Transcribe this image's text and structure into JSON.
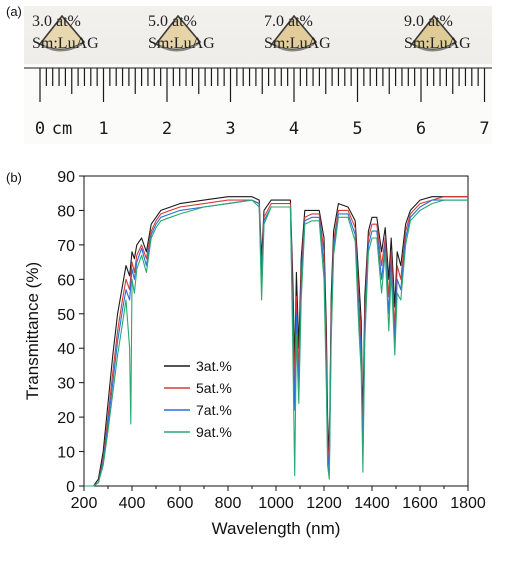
{
  "panel_a": {
    "label": "(a)",
    "samples": [
      {
        "line1": "3.0 at%",
        "line2": "Sm:LuAG",
        "color": "#e8d8b0"
      },
      {
        "line1": "5.0 at%",
        "line2": "Sm:LuAG",
        "color": "#e6d4a8"
      },
      {
        "line1": "7.0 at%",
        "line2": "Sm:LuAG",
        "color": "#e2cd9a"
      },
      {
        "line1": "9.0 at%",
        "line2": "Sm:LuAG",
        "color": "#decb95"
      }
    ],
    "ruler": {
      "unit": "cm",
      "numbers": [
        "0",
        "1",
        "2",
        "3",
        "4",
        "5",
        "6",
        "7"
      ]
    }
  },
  "panel_b": {
    "label": "(b)"
  },
  "chart_data": {
    "type": "line",
    "xlabel": "Wavelength (nm)",
    "ylabel": "Transmittance (%)",
    "xlim": [
      200,
      1800
    ],
    "ylim": [
      0,
      90
    ],
    "xticks": [
      200,
      400,
      600,
      800,
      1000,
      1200,
      1400,
      1600,
      1800
    ],
    "yticks": [
      0,
      10,
      20,
      30,
      40,
      50,
      60,
      70,
      80,
      90
    ],
    "legend_position": "center-left",
    "series": [
      {
        "name": "3at.%",
        "color": "#1a1a1a",
        "points": [
          [
            200,
            0
          ],
          [
            240,
            0
          ],
          [
            260,
            2
          ],
          [
            280,
            10
          ],
          [
            300,
            24
          ],
          [
            320,
            38
          ],
          [
            340,
            50
          ],
          [
            360,
            58
          ],
          [
            375,
            64
          ],
          [
            390,
            61
          ],
          [
            400,
            68
          ],
          [
            410,
            66
          ],
          [
            420,
            70
          ],
          [
            440,
            72
          ],
          [
            460,
            68
          ],
          [
            480,
            76
          ],
          [
            500,
            78
          ],
          [
            520,
            80
          ],
          [
            560,
            81
          ],
          [
            600,
            82
          ],
          [
            700,
            83
          ],
          [
            800,
            84
          ],
          [
            900,
            84
          ],
          [
            930,
            83
          ],
          [
            940,
            66
          ],
          [
            950,
            80
          ],
          [
            980,
            83
          ],
          [
            1060,
            83
          ],
          [
            1070,
            60
          ],
          [
            1078,
            35
          ],
          [
            1085,
            62
          ],
          [
            1095,
            40
          ],
          [
            1105,
            66
          ],
          [
            1120,
            80
          ],
          [
            1150,
            80
          ],
          [
            1180,
            80
          ],
          [
            1200,
            72
          ],
          [
            1210,
            45
          ],
          [
            1215,
            20
          ],
          [
            1222,
            8
          ],
          [
            1230,
            55
          ],
          [
            1240,
            74
          ],
          [
            1260,
            82
          ],
          [
            1300,
            81
          ],
          [
            1330,
            77
          ],
          [
            1345,
            60
          ],
          [
            1355,
            48
          ],
          [
            1362,
            18
          ],
          [
            1370,
            55
          ],
          [
            1385,
            74
          ],
          [
            1400,
            78
          ],
          [
            1420,
            78
          ],
          [
            1440,
            68
          ],
          [
            1455,
            75
          ],
          [
            1470,
            60
          ],
          [
            1480,
            72
          ],
          [
            1495,
            52
          ],
          [
            1505,
            68
          ],
          [
            1520,
            64
          ],
          [
            1540,
            76
          ],
          [
            1560,
            80
          ],
          [
            1600,
            83
          ],
          [
            1650,
            84
          ],
          [
            1700,
            84
          ],
          [
            1800,
            84
          ]
        ]
      },
      {
        "name": "5at.%",
        "color": "#d83a3a",
        "points": [
          [
            200,
            0
          ],
          [
            240,
            0
          ],
          [
            260,
            1
          ],
          [
            280,
            8
          ],
          [
            300,
            20
          ],
          [
            320,
            33
          ],
          [
            340,
            45
          ],
          [
            360,
            54
          ],
          [
            375,
            60
          ],
          [
            390,
            57
          ],
          [
            400,
            65
          ],
          [
            410,
            62
          ],
          [
            420,
            67
          ],
          [
            440,
            70
          ],
          [
            460,
            66
          ],
          [
            480,
            74
          ],
          [
            500,
            77
          ],
          [
            520,
            79
          ],
          [
            560,
            80
          ],
          [
            600,
            81
          ],
          [
            700,
            82
          ],
          [
            800,
            83
          ],
          [
            900,
            83
          ],
          [
            930,
            82
          ],
          [
            940,
            62
          ],
          [
            950,
            78
          ],
          [
            980,
            82
          ],
          [
            1060,
            82
          ],
          [
            1070,
            52
          ],
          [
            1078,
            28
          ],
          [
            1085,
            55
          ],
          [
            1095,
            33
          ],
          [
            1105,
            62
          ],
          [
            1120,
            78
          ],
          [
            1150,
            79
          ],
          [
            1180,
            79
          ],
          [
            1200,
            68
          ],
          [
            1210,
            38
          ],
          [
            1215,
            14
          ],
          [
            1222,
            5
          ],
          [
            1230,
            50
          ],
          [
            1240,
            71
          ],
          [
            1260,
            80
          ],
          [
            1300,
            80
          ],
          [
            1330,
            75
          ],
          [
            1345,
            55
          ],
          [
            1355,
            42
          ],
          [
            1362,
            12
          ],
          [
            1370,
            50
          ],
          [
            1385,
            72
          ],
          [
            1400,
            76
          ],
          [
            1420,
            76
          ],
          [
            1440,
            64
          ],
          [
            1455,
            72
          ],
          [
            1470,
            55
          ],
          [
            1480,
            68
          ],
          [
            1495,
            46
          ],
          [
            1505,
            64
          ],
          [
            1520,
            60
          ],
          [
            1540,
            74
          ],
          [
            1560,
            79
          ],
          [
            1600,
            82
          ],
          [
            1650,
            83
          ],
          [
            1700,
            84
          ],
          [
            1800,
            84
          ]
        ]
      },
      {
        "name": "7at.%",
        "color": "#2a6fd6",
        "points": [
          [
            200,
            0
          ],
          [
            240,
            0
          ],
          [
            260,
            1
          ],
          [
            280,
            7
          ],
          [
            300,
            18
          ],
          [
            320,
            30
          ],
          [
            340,
            42
          ],
          [
            360,
            51
          ],
          [
            375,
            57
          ],
          [
            390,
            54
          ],
          [
            400,
            63
          ],
          [
            410,
            60
          ],
          [
            420,
            65
          ],
          [
            440,
            69
          ],
          [
            460,
            64
          ],
          [
            480,
            73
          ],
          [
            500,
            76
          ],
          [
            520,
            78
          ],
          [
            560,
            79
          ],
          [
            600,
            80
          ],
          [
            700,
            81
          ],
          [
            800,
            82
          ],
          [
            900,
            83
          ],
          [
            930,
            82
          ],
          [
            940,
            58
          ],
          [
            950,
            77
          ],
          [
            980,
            81
          ],
          [
            1060,
            81
          ],
          [
            1070,
            46
          ],
          [
            1078,
            22
          ],
          [
            1085,
            50
          ],
          [
            1095,
            28
          ],
          [
            1105,
            58
          ],
          [
            1120,
            77
          ],
          [
            1150,
            78
          ],
          [
            1180,
            78
          ],
          [
            1200,
            64
          ],
          [
            1210,
            32
          ],
          [
            1215,
            10
          ],
          [
            1222,
            4
          ],
          [
            1230,
            46
          ],
          [
            1240,
            69
          ],
          [
            1260,
            79
          ],
          [
            1300,
            79
          ],
          [
            1330,
            73
          ],
          [
            1345,
            50
          ],
          [
            1355,
            38
          ],
          [
            1362,
            9
          ],
          [
            1370,
            46
          ],
          [
            1385,
            70
          ],
          [
            1400,
            74
          ],
          [
            1420,
            74
          ],
          [
            1440,
            60
          ],
          [
            1455,
            70
          ],
          [
            1470,
            50
          ],
          [
            1480,
            65
          ],
          [
            1495,
            42
          ],
          [
            1505,
            60
          ],
          [
            1520,
            57
          ],
          [
            1540,
            72
          ],
          [
            1560,
            78
          ],
          [
            1600,
            81
          ],
          [
            1650,
            83
          ],
          [
            1700,
            83
          ],
          [
            1800,
            83
          ]
        ]
      },
      {
        "name": "9at.%",
        "color": "#2aa872",
        "points": [
          [
            200,
            0
          ],
          [
            240,
            0
          ],
          [
            260,
            1
          ],
          [
            280,
            6
          ],
          [
            300,
            16
          ],
          [
            320,
            27
          ],
          [
            340,
            38
          ],
          [
            360,
            47
          ],
          [
            375,
            54
          ],
          [
            390,
            40
          ],
          [
            395,
            18
          ],
          [
            400,
            60
          ],
          [
            410,
            56
          ],
          [
            420,
            63
          ],
          [
            440,
            67
          ],
          [
            460,
            62
          ],
          [
            480,
            72
          ],
          [
            500,
            75
          ],
          [
            520,
            77
          ],
          [
            560,
            78
          ],
          [
            600,
            79
          ],
          [
            700,
            81
          ],
          [
            800,
            82
          ],
          [
            900,
            83
          ],
          [
            930,
            81
          ],
          [
            940,
            54
          ],
          [
            950,
            76
          ],
          [
            980,
            81
          ],
          [
            1060,
            81
          ],
          [
            1070,
            40
          ],
          [
            1078,
            3
          ],
          [
            1085,
            44
          ],
          [
            1095,
            24
          ],
          [
            1105,
            54
          ],
          [
            1120,
            76
          ],
          [
            1150,
            77
          ],
          [
            1180,
            77
          ],
          [
            1200,
            60
          ],
          [
            1210,
            28
          ],
          [
            1215,
            6
          ],
          [
            1222,
            2
          ],
          [
            1230,
            42
          ],
          [
            1240,
            67
          ],
          [
            1260,
            78
          ],
          [
            1300,
            78
          ],
          [
            1330,
            71
          ],
          [
            1345,
            46
          ],
          [
            1355,
            33
          ],
          [
            1362,
            4
          ],
          [
            1370,
            42
          ],
          [
            1385,
            68
          ],
          [
            1400,
            72
          ],
          [
            1420,
            72
          ],
          [
            1440,
            56
          ],
          [
            1455,
            68
          ],
          [
            1470,
            45
          ],
          [
            1480,
            62
          ],
          [
            1495,
            38
          ],
          [
            1505,
            56
          ],
          [
            1520,
            54
          ],
          [
            1540,
            70
          ],
          [
            1560,
            77
          ],
          [
            1600,
            80
          ],
          [
            1650,
            82
          ],
          [
            1700,
            83
          ],
          [
            1800,
            83
          ]
        ]
      }
    ]
  }
}
